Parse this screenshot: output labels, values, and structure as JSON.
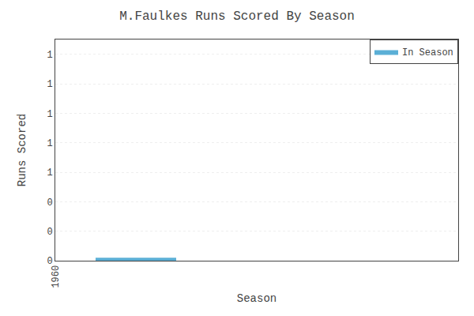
{
  "chart_data": {
    "type": "area",
    "title": "M.Faulkes Runs Scored By Season",
    "x_label": "Season",
    "y_label": "Runs Scored",
    "x": [
      1965,
      1975
    ],
    "series": [
      {
        "name": "In Season",
        "color": "#5bafd6",
        "values": [
          0.02,
          0.02
        ]
      }
    ],
    "xlim": [
      1960,
      2010
    ],
    "xticks": [
      1960
    ],
    "ylim": [
      0,
      1.5
    ],
    "yticks": [
      {
        "value": 1.4,
        "label": "1"
      },
      {
        "value": 1.2,
        "label": "1"
      },
      {
        "value": 1.0,
        "label": "1"
      },
      {
        "value": 0.8,
        "label": "1"
      },
      {
        "value": 0.6,
        "label": "1"
      },
      {
        "value": 0.4,
        "label": "0"
      },
      {
        "value": 0.2,
        "label": "0"
      },
      0
    ],
    "grid": "y",
    "legend": "upper right"
  }
}
